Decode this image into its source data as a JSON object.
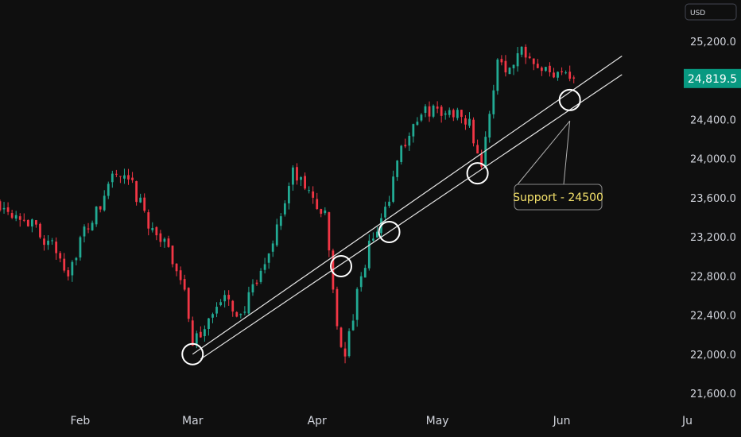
{
  "currency": "USD",
  "price_label": {
    "text": "24,819.5",
    "value": 24819.5,
    "color": "#089981"
  },
  "colors": {
    "up": "#22ab94",
    "down": "#f23645",
    "background": "#0f0f0f",
    "axis_text": "#d1d4dc",
    "annotation": "#f5e26b",
    "lines": "#e6e6e6"
  },
  "chart_data": {
    "type": "candlestick",
    "title": "",
    "xlabel": "",
    "ylabel": "",
    "ylim": [
      21400,
      25500
    ],
    "y_ticks": [
      {
        "value": 25200,
        "label": "25,200.0"
      },
      {
        "value": 24800,
        "label": "24,800.0"
      },
      {
        "value": 24400,
        "label": "24,400.0"
      },
      {
        "value": 24000,
        "label": "24,000.0"
      },
      {
        "value": 23600,
        "label": "23,600.0"
      },
      {
        "value": 23200,
        "label": "23,200.0"
      },
      {
        "value": 22800,
        "label": "22,800.0"
      },
      {
        "value": 22400,
        "label": "22,400.0"
      },
      {
        "value": 22000,
        "label": "22,000.0"
      },
      {
        "value": 21600,
        "label": "21,600.0"
      }
    ],
    "x_ticks": [
      {
        "label": "Feb",
        "date": "2025-02-01"
      },
      {
        "label": "Mar",
        "date": "2025-03-01"
      },
      {
        "label": "Apr",
        "date": "2025-04-01"
      },
      {
        "label": "May",
        "date": "2025-05-01"
      },
      {
        "label": "Jun",
        "date": "2025-06-01"
      },
      {
        "label": "Ju",
        "date": "2025-07-01"
      }
    ],
    "x_range": [
      "2025-01-12",
      "2025-07-01"
    ],
    "price_path": [
      {
        "date": "2025-01-12",
        "price": 23550
      },
      {
        "date": "2025-01-18",
        "price": 23400
      },
      {
        "date": "2025-01-25",
        "price": 23100
      },
      {
        "date": "2025-01-29",
        "price": 22850
      },
      {
        "date": "2025-02-02",
        "price": 23250
      },
      {
        "date": "2025-02-06",
        "price": 23500
      },
      {
        "date": "2025-02-09",
        "price": 23850
      },
      {
        "date": "2025-02-14",
        "price": 23700
      },
      {
        "date": "2025-02-18",
        "price": 23350
      },
      {
        "date": "2025-02-23",
        "price": 23050
      },
      {
        "date": "2025-02-27",
        "price": 22700
      },
      {
        "date": "2025-03-01",
        "price": 22050
      },
      {
        "date": "2025-03-05",
        "price": 22400
      },
      {
        "date": "2025-03-09",
        "price": 22550
      },
      {
        "date": "2025-03-13",
        "price": 22400
      },
      {
        "date": "2025-03-18",
        "price": 22800
      },
      {
        "date": "2025-03-22",
        "price": 23300
      },
      {
        "date": "2025-03-26",
        "price": 23850
      },
      {
        "date": "2025-03-30",
        "price": 23650
      },
      {
        "date": "2025-04-03",
        "price": 23400
      },
      {
        "date": "2025-04-06",
        "price": 22300
      },
      {
        "date": "2025-04-08",
        "price": 21950
      },
      {
        "date": "2025-04-11",
        "price": 22600
      },
      {
        "date": "2025-04-14",
        "price": 23100
      },
      {
        "date": "2025-04-18",
        "price": 23450
      },
      {
        "date": "2025-04-21",
        "price": 24000
      },
      {
        "date": "2025-04-25",
        "price": 24350
      },
      {
        "date": "2025-04-29",
        "price": 24500
      },
      {
        "date": "2025-05-03",
        "price": 24450
      },
      {
        "date": "2025-05-07",
        "price": 24500
      },
      {
        "date": "2025-05-09",
        "price": 24350
      },
      {
        "date": "2025-05-12",
        "price": 23950
      },
      {
        "date": "2025-05-14",
        "price": 24400
      },
      {
        "date": "2025-05-16",
        "price": 25050
      },
      {
        "date": "2025-05-19",
        "price": 24900
      },
      {
        "date": "2025-05-22",
        "price": 25150
      },
      {
        "date": "2025-05-26",
        "price": 25000
      },
      {
        "date": "2025-05-29",
        "price": 24850
      },
      {
        "date": "2025-06-01",
        "price": 24950
      },
      {
        "date": "2025-06-04",
        "price": 24819.5
      }
    ],
    "trendlines": [
      {
        "from": {
          "date": "2025-03-01",
          "price": 22000
        },
        "to": {
          "date": "2025-06-16",
          "price": 25050
        }
      },
      {
        "from": {
          "date": "2025-03-03",
          "price": 21950
        },
        "to": {
          "date": "2025-06-16",
          "price": 24860
        }
      }
    ],
    "touch_points": [
      {
        "date": "2025-03-01",
        "price": 22000
      },
      {
        "date": "2025-04-07",
        "price": 22900
      },
      {
        "date": "2025-04-19",
        "price": 23250
      },
      {
        "date": "2025-05-11",
        "price": 23850
      },
      {
        "date": "2025-06-03",
        "price": 24600
      }
    ],
    "annotations": [
      {
        "text": "Support - 24500",
        "price": 24500,
        "anchor_date": "2025-06-03"
      }
    ]
  }
}
